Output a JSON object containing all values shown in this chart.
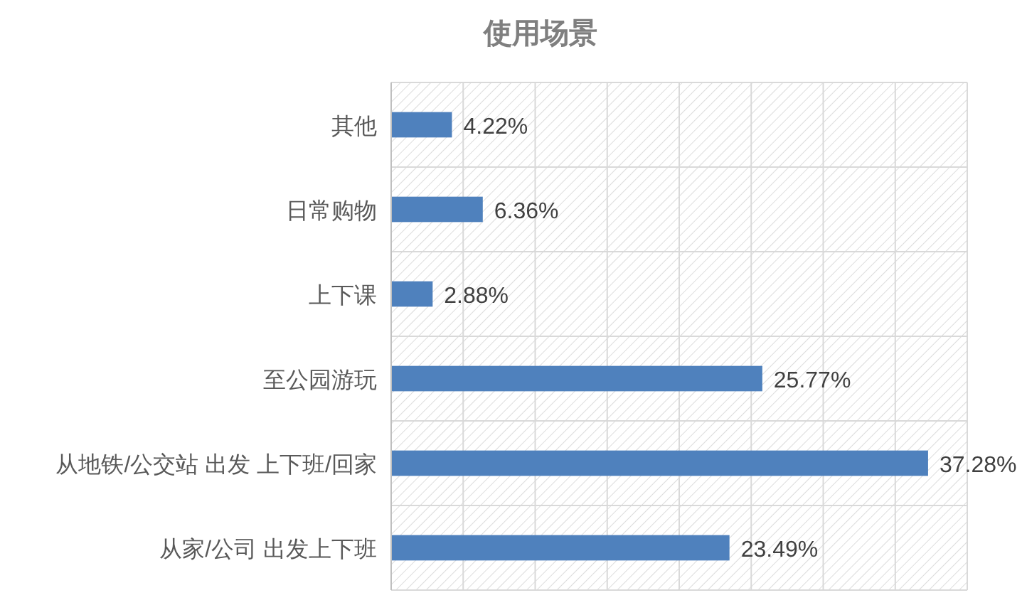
{
  "chart_data": {
    "type": "bar",
    "orientation": "horizontal",
    "title": "使用场景",
    "categories": [
      "其他",
      "日常购物",
      "上下课",
      "至公园游玩",
      "从地铁/公交站 出发 上下班/回家",
      "从家/公司 出发上下班"
    ],
    "values": [
      4.22,
      6.36,
      2.88,
      25.77,
      37.28,
      23.49
    ],
    "value_labels": [
      "4.22%",
      "6.36%",
      "2.88%",
      "25.77%",
      "37.28%",
      "23.49%"
    ],
    "color": "#4f81bd",
    "xlim": [
      0,
      40
    ],
    "xticks": [
      {
        "value": 0,
        "label": null
      },
      {
        "value": 5,
        "label": null
      },
      {
        "value": 10,
        "label": null
      },
      {
        "value": 15,
        "label": null
      },
      {
        "value": 20,
        "label": null
      },
      {
        "value": 25,
        "label": null
      },
      {
        "value": 30,
        "label": null
      },
      {
        "value": 35,
        "label": null
      },
      {
        "value": 40,
        "label": null
      }
    ],
    "tick_labels": "y",
    "grid": true
  }
}
